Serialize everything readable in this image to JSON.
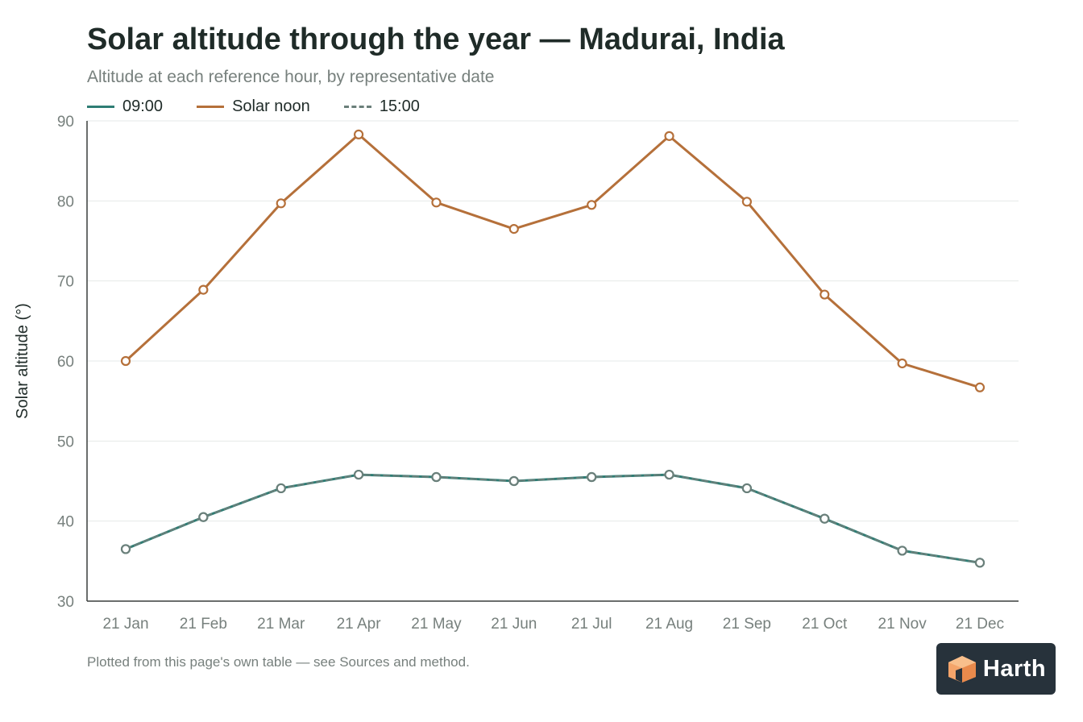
{
  "header": {
    "title": "Solar altitude through the year — Madurai, India",
    "subtitle": "Altitude at each reference hour, by representative date"
  },
  "footer": {
    "note": "Plotted from this page's own table — see Sources and method.",
    "logo_text": "Harth",
    "logo_icon": "cube-icon"
  },
  "colors": {
    "s0900": "#2e7d74",
    "noon": "#b5703a",
    "s1500": "#6b7f7a",
    "grid": "#e6e9e8",
    "axis": "#3a3f3d"
  },
  "chart_data": {
    "type": "line",
    "title": "Solar altitude through the year — Madurai, India",
    "subtitle": "Altitude at each reference hour, by representative date",
    "xlabel": "",
    "ylabel": "Solar altitude (°)",
    "categories": [
      "21 Jan",
      "21 Feb",
      "21 Mar",
      "21 Apr",
      "21 May",
      "21 Jun",
      "21 Jul",
      "21 Aug",
      "21 Sep",
      "21 Oct",
      "21 Nov",
      "21 Dec"
    ],
    "ylim": [
      30,
      90
    ],
    "yticks": [
      30,
      40,
      50,
      60,
      70,
      80,
      90
    ],
    "grid": true,
    "legend_position": "top-left",
    "series": [
      {
        "name": "09:00",
        "style": "solid",
        "color": "#2e7d74",
        "values": [
          36.5,
          40.5,
          44.1,
          45.8,
          45.5,
          45.0,
          45.5,
          45.8,
          44.1,
          40.3,
          36.3,
          34.8
        ]
      },
      {
        "name": "Solar noon",
        "style": "solid",
        "color": "#b5703a",
        "values": [
          60.0,
          68.9,
          79.7,
          88.3,
          79.8,
          76.5,
          79.5,
          88.1,
          79.9,
          68.3,
          59.7,
          56.7
        ]
      },
      {
        "name": "15:00",
        "style": "dashed",
        "color": "#6b7f7a",
        "values": [
          36.5,
          40.5,
          44.1,
          45.8,
          45.5,
          45.0,
          45.5,
          45.8,
          44.1,
          40.3,
          36.3,
          34.8
        ]
      }
    ]
  }
}
